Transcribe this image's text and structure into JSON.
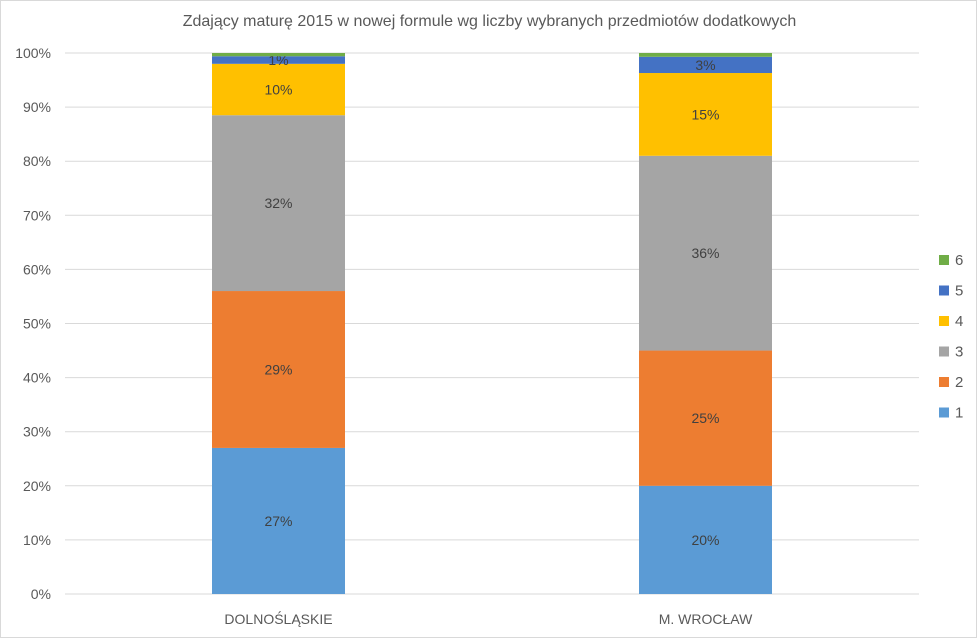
{
  "chart_data": {
    "type": "bar",
    "stacked": true,
    "percent_stacked": true,
    "title": "Zdający maturę 2015 w nowej formule wg liczby wybranych przedmiotów dodatkowych",
    "xlabel": "",
    "ylabel": "",
    "ylim": [
      0,
      100
    ],
    "yticks": [
      "0%",
      "10%",
      "20%",
      "30%",
      "40%",
      "50%",
      "60%",
      "70%",
      "80%",
      "90%",
      "100%"
    ],
    "categories": [
      "DOLNOŚLĄSKIE",
      "M. WROCŁAW"
    ],
    "series": [
      {
        "name": "1",
        "color": "#5b9bd5",
        "values": [
          27,
          20
        ],
        "labels": [
          "27%",
          "20%"
        ]
      },
      {
        "name": "2",
        "color": "#ed7d31",
        "values": [
          29,
          25
        ],
        "labels": [
          "29%",
          "25%"
        ]
      },
      {
        "name": "3",
        "color": "#a5a5a5",
        "values": [
          32.5,
          36
        ],
        "labels": [
          "32%",
          "36%"
        ]
      },
      {
        "name": "4",
        "color": "#ffc000",
        "values": [
          9.5,
          15.3
        ],
        "labels": [
          "10%",
          "15%"
        ]
      },
      {
        "name": "5",
        "color": "#4472c4",
        "values": [
          1.4,
          3
        ],
        "labels": [
          "1%",
          "3%"
        ]
      },
      {
        "name": "6",
        "color": "#70ad47",
        "values": [
          0.6,
          0.7
        ],
        "labels": [
          "",
          ""
        ]
      }
    ],
    "grid": true,
    "legend": "right"
  }
}
